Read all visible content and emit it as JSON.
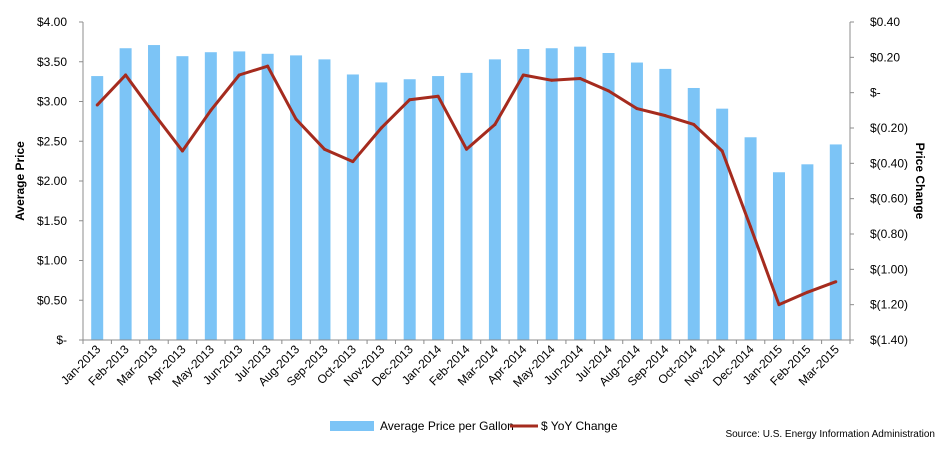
{
  "chart_data": {
    "type": "bar+line",
    "categories": [
      "Jan-2013",
      "Feb-2013",
      "Mar-2013",
      "Apr-2013",
      "May-2013",
      "Jun-2013",
      "Jul-2013",
      "Aug-2013",
      "Sep-2013",
      "Oct-2013",
      "Nov-2013",
      "Dec-2013",
      "Jan-2014",
      "Feb-2014",
      "Mar-2014",
      "Apr-2014",
      "May-2014",
      "Jun-2014",
      "Jul-2014",
      "Aug-2014",
      "Sep-2014",
      "Oct-2014",
      "Nov-2014",
      "Dec-2014",
      "Jan-2015",
      "Feb-2015",
      "Mar-2015"
    ],
    "series": [
      {
        "name": "Average Price per Gallon",
        "type": "bar",
        "axis": "left",
        "color": "#7cc4f6",
        "values": [
          3.32,
          3.67,
          3.71,
          3.57,
          3.62,
          3.63,
          3.6,
          3.58,
          3.53,
          3.34,
          3.24,
          3.28,
          3.32,
          3.36,
          3.53,
          3.66,
          3.67,
          3.69,
          3.61,
          3.49,
          3.41,
          3.17,
          2.91,
          2.55,
          2.11,
          2.21,
          2.46
        ]
      },
      {
        "name": "$ YoY Change",
        "type": "line",
        "axis": "right",
        "color": "#a52b1e",
        "values": [
          -0.07,
          0.1,
          -0.12,
          -0.33,
          -0.1,
          0.1,
          0.15,
          -0.15,
          -0.32,
          -0.39,
          -0.2,
          -0.04,
          -0.02,
          -0.32,
          -0.18,
          0.1,
          0.07,
          0.08,
          0.01,
          -0.09,
          -0.13,
          -0.18,
          -0.33,
          -0.76,
          -1.2,
          -1.13,
          -1.07
        ]
      }
    ],
    "ylabel": "Average Price",
    "y2label": "Price Change",
    "ylim": [
      0,
      4
    ],
    "y2lim": [
      -1.4,
      0.4
    ],
    "yticks": [
      "$-",
      "$0.50",
      "$1.00",
      "$1.50",
      "$2.00",
      "$2.50",
      "$3.00",
      "$3.50",
      "$4.00"
    ],
    "y2ticks": [
      "$(1.40)",
      "$(1.20)",
      "$(1.00)",
      "$(0.80)",
      "$(0.60)",
      "$(0.40)",
      "$(0.20)",
      "$-",
      "$0.20",
      "$0.40"
    ],
    "grid": false,
    "legend": "bottom-center",
    "source": "Source: U.S. Energy Information Administration"
  }
}
